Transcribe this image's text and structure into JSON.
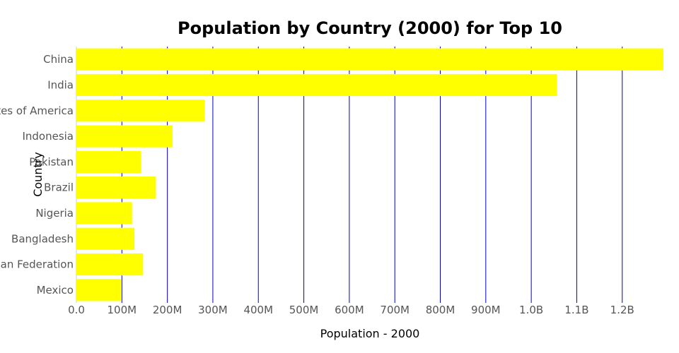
{
  "chart_data": {
    "type": "bar",
    "orientation": "horizontal",
    "title": "Population by Country (2000) for Top 10",
    "xlabel": "Population - 2000",
    "ylabel": "Country",
    "categories": [
      "China",
      "India",
      "United States of America",
      "Indonesia",
      "Pakistan",
      "Brazil",
      "Nigeria",
      "Bangladesh",
      "Russian Federation",
      "Mexico"
    ],
    "values": [
      1290550000,
      1056576000,
      282162000,
      211540000,
      142344000,
      174790000,
      122352000,
      127657000,
      146597000,
      97873000
    ],
    "xlim": [
      0,
      1290550000
    ],
    "xticks": [
      0,
      100000000,
      200000000,
      300000000,
      400000000,
      500000000,
      600000000,
      700000000,
      800000000,
      900000000,
      1000000000,
      1100000000,
      1200000000
    ],
    "xtick_labels": [
      "0.0",
      "100M",
      "200M",
      "300M",
      "400M",
      "500M",
      "600M",
      "700M",
      "800M",
      "900M",
      "1.0B",
      "1.1B",
      "1.2B"
    ],
    "grid": true,
    "colors": {
      "bar": "#ffff00",
      "grid": "#0000cc",
      "axis": "#cccccc"
    }
  }
}
